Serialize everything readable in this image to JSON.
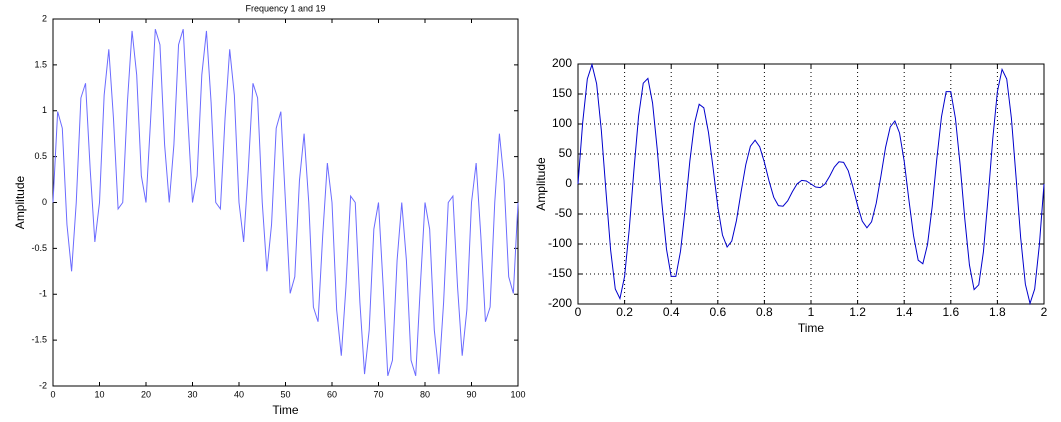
{
  "chart_data": [
    {
      "type": "line",
      "title": "Frequency 1 and 19",
      "x_label": "Time",
      "y_label": "Amplitude",
      "x": [
        0,
        1,
        2,
        3,
        4,
        5,
        6,
        7,
        8,
        9,
        10,
        11,
        12,
        13,
        14,
        15,
        16,
        17,
        18,
        19,
        20,
        21,
        22,
        23,
        24,
        25,
        26,
        27,
        28,
        29,
        30,
        31,
        32,
        33,
        34,
        35,
        36,
        37,
        38,
        39,
        40,
        41,
        42,
        43,
        44,
        45,
        46,
        47,
        48,
        49,
        50,
        51,
        52,
        53,
        54,
        55,
        56,
        57,
        58,
        59,
        60,
        61,
        62,
        63,
        64,
        65,
        66,
        67,
        68,
        69,
        70,
        71,
        72,
        73,
        74,
        75,
        76,
        77,
        78,
        79,
        80,
        81,
        82,
        83,
        84,
        85,
        86,
        87,
        88,
        89,
        90,
        91,
        92,
        93,
        94,
        95,
        96,
        97,
        98,
        99,
        100
      ],
      "series": [
        {
          "color": "#6b6bff",
          "values": [
            0,
            0.99,
            0.81,
            -0.24,
            -0.75,
            0,
            1.14,
            1.3,
            0.36,
            -0.43,
            0,
            1.17,
            1.67,
            0.92,
            -0.07,
            0,
            1.09,
            1.87,
            1.39,
            0.29,
            0,
            0.91,
            1.89,
            1.72,
            0.63,
            0,
            0.63,
            1.72,
            1.89,
            0.91,
            0,
            0.29,
            1.39,
            1.87,
            1.09,
            0,
            -0.07,
            0.92,
            1.67,
            1.17,
            0,
            -0.43,
            0.36,
            1.3,
            1.14,
            0,
            -0.75,
            -0.24,
            0.81,
            0.99,
            0,
            -0.99,
            -0.81,
            0.24,
            0.75,
            0,
            -1.14,
            -1.3,
            -0.36,
            0.43,
            0,
            -1.17,
            -1.67,
            -0.92,
            0.07,
            0,
            -1.09,
            -1.87,
            -1.39,
            -0.29,
            0,
            -0.91,
            -1.89,
            -1.72,
            -0.63,
            0,
            -0.63,
            -1.72,
            -1.89,
            -0.91,
            0,
            -0.29,
            -1.39,
            -1.87,
            -1.09,
            0,
            0.07,
            -0.92,
            -1.67,
            -1.17,
            0,
            0.43,
            -0.36,
            -1.3,
            -1.14,
            0,
            0.75,
            0.24,
            -0.81,
            -0.99,
            0
          ]
        }
      ],
      "xlim": [
        0,
        100
      ],
      "xticks": [
        0,
        10,
        20,
        30,
        40,
        50,
        60,
        70,
        80,
        90,
        100
      ],
      "ylim": [
        -2,
        2
      ],
      "yticks": [
        -2,
        -1.5,
        -1,
        -0.5,
        0,
        0.5,
        1,
        1.5,
        2
      ],
      "grid": false
    },
    {
      "type": "line",
      "x_label": "Time",
      "y_label": "Amplitude",
      "x": [
        0,
        0.02,
        0.04,
        0.06,
        0.08,
        0.1,
        0.12,
        0.14,
        0.16,
        0.18,
        0.2,
        0.22,
        0.24,
        0.26,
        0.28,
        0.3,
        0.32,
        0.34,
        0.36,
        0.38,
        0.4,
        0.42,
        0.44,
        0.46,
        0.48,
        0.5,
        0.52,
        0.54,
        0.56,
        0.58,
        0.6,
        0.62,
        0.64,
        0.66,
        0.68,
        0.7,
        0.72,
        0.74,
        0.76,
        0.78,
        0.8,
        0.82,
        0.84,
        0.86,
        0.88,
        0.9,
        0.92,
        0.94,
        0.96,
        0.98,
        1,
        1.02,
        1.04,
        1.06,
        1.08,
        1.1,
        1.12,
        1.14,
        1.16,
        1.18,
        1.2,
        1.22,
        1.24,
        1.26,
        1.28,
        1.3,
        1.32,
        1.34,
        1.36,
        1.38,
        1.4,
        1.42,
        1.44,
        1.46,
        1.48,
        1.5,
        1.52,
        1.54,
        1.56,
        1.58,
        1.6,
        1.62,
        1.64,
        1.66,
        1.68,
        1.7,
        1.72,
        1.74,
        1.76,
        1.78,
        1.8,
        1.82,
        1.84,
        1.86,
        1.88,
        1.9,
        1.92,
        1.94,
        1.96,
        1.98,
        2
      ],
      "series": [
        {
          "color": "#0000cc",
          "values": [
            0,
            102,
            175,
            199,
            167,
            90,
            -12,
            -110,
            -175,
            -191,
            -154,
            -75,
            23,
            113,
            168,
            176,
            135,
            58,
            -32,
            -109,
            -154,
            -154,
            -112,
            -42,
            38,
            101,
            133,
            127,
            86,
            26,
            -38,
            -85,
            -105,
            -95,
            -61,
            -13,
            32,
            63,
            73,
            62,
            36,
            5,
            -22,
            -36,
            -37,
            -28,
            -13,
            0,
            6,
            5,
            0,
            -5,
            -6,
            0,
            13,
            28,
            37,
            36,
            22,
            -5,
            -36,
            -62,
            -73,
            -63,
            -32,
            13,
            61,
            95,
            105,
            85,
            38,
            -26,
            -86,
            -127,
            -133,
            -101,
            -38,
            42,
            112,
            154,
            154,
            109,
            32,
            -58,
            -135,
            -176,
            -168,
            -113,
            -23,
            75,
            154,
            191,
            175,
            110,
            12,
            -90,
            -167,
            -199,
            -175,
            -102,
            0
          ]
        }
      ],
      "xlim": [
        0,
        2
      ],
      "xticks": [
        0,
        0.2,
        0.4,
        0.6,
        0.8,
        1,
        1.2,
        1.4,
        1.6,
        1.8,
        2
      ],
      "ylim": [
        -200,
        200
      ],
      "yticks": [
        -200,
        -150,
        -100,
        -50,
        0,
        50,
        100,
        150,
        200
      ],
      "grid": true
    }
  ]
}
